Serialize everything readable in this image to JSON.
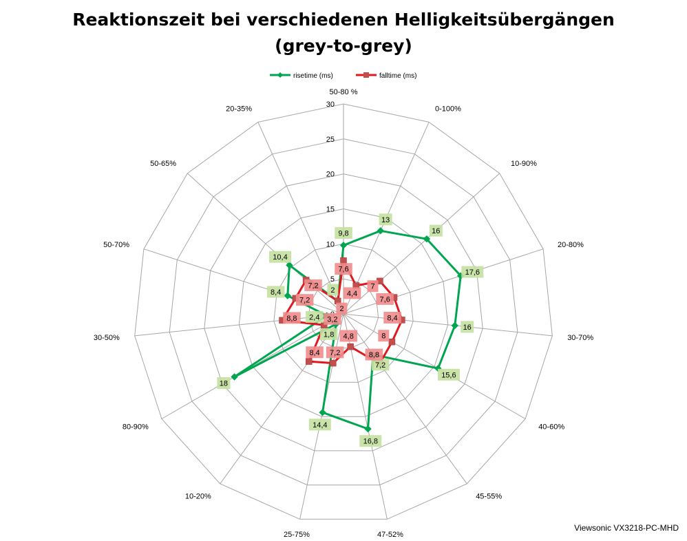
{
  "page": {
    "credit": "Viewsonic VX3218-PC-MHD"
  },
  "chart_data": {
    "type": "radar",
    "title_lines": [
      "Reaktionszeit bei verschiedenen Helligkeitsübergängen",
      "(grey-to-grey)"
    ],
    "categories": [
      "50-80 %",
      "0-100%",
      "10-90%",
      "20-80%",
      "30-70%",
      "40-60%",
      "45-55%",
      "47-52%",
      "25-75%",
      "10-20%",
      "80-90%",
      "30-50%",
      "50-70%",
      "50-65%",
      "20-35%"
    ],
    "rlim": [
      0,
      30
    ],
    "ticks": [
      0,
      5,
      10,
      15,
      20,
      25,
      30
    ],
    "tick_labels": [
      "0",
      "5",
      "10",
      "15",
      "20",
      "25",
      "30"
    ],
    "grid": true,
    "legend_position": "top",
    "series": [
      {
        "name": "risetime (ms)",
        "color": "#00a550",
        "marker": "diamond",
        "values": [
          9.8,
          13,
          16,
          17.6,
          16,
          15.6,
          7.2,
          16.8,
          14.4,
          1.8,
          18,
          2.4,
          8.4,
          10.4,
          2
        ],
        "labels": [
          "9,8",
          "13",
          "16",
          "17,6",
          "16",
          "15,6",
          "7,2",
          "16,8",
          "14,4",
          "1,8",
          "18",
          "2,4",
          "8,4",
          "10,4",
          "2"
        ]
      },
      {
        "name": "falltime (ms)",
        "color": "#e0191f",
        "marker": "square",
        "values": [
          7.6,
          4.4,
          7,
          7.6,
          8.4,
          8,
          8.8,
          4.8,
          7.2,
          8.4,
          3.2,
          8.8,
          7.2,
          7.2,
          2
        ],
        "labels": [
          "7,6",
          "4,4",
          "7",
          "7,6",
          "8,4",
          "8",
          "8,8",
          "4,8",
          "7,2",
          "8,4",
          "3,2",
          "8,8",
          "7,2",
          "7,2",
          "2"
        ]
      }
    ]
  }
}
